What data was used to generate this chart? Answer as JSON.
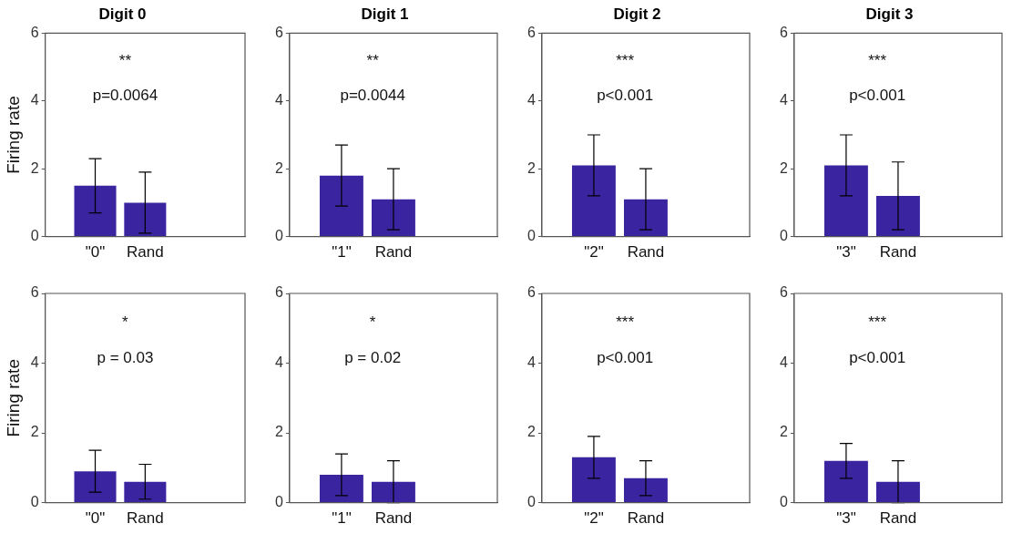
{
  "chart_data": [
    {
      "type": "bar",
      "title": "Digit 0",
      "ylabel": "Firing rate",
      "categories": [
        null,
        "\"0\"",
        "Rand",
        null,
        null
      ],
      "values": [
        null,
        1.5,
        1.0,
        null,
        null
      ],
      "errors": [
        null,
        0.8,
        0.9,
        null,
        null
      ],
      "color": "#3b24a0",
      "ylim": [
        0,
        6
      ],
      "yticks": [
        0,
        2,
        4,
        6
      ],
      "annotations": [
        "**",
        "p=0.0064"
      ]
    },
    {
      "type": "bar",
      "title": "Digit 1",
      "categories": [
        null,
        "\"1\"",
        "Rand",
        null,
        null
      ],
      "values": [
        null,
        1.8,
        1.1,
        null,
        null
      ],
      "errors": [
        null,
        0.9,
        0.9,
        null,
        null
      ],
      "color": "#3b24a0",
      "ylim": [
        0,
        6
      ],
      "yticks": [
        0,
        2,
        4,
        6
      ],
      "annotations": [
        "**",
        "p=0.0044"
      ]
    },
    {
      "type": "bar",
      "title": "Digit 2",
      "categories": [
        null,
        "\"2\"",
        "Rand",
        null,
        null
      ],
      "values": [
        null,
        2.1,
        1.1,
        null,
        null
      ],
      "errors": [
        null,
        0.9,
        0.9,
        null,
        null
      ],
      "color": "#3b24a0",
      "ylim": [
        0,
        6
      ],
      "yticks": [
        0,
        2,
        4,
        6
      ],
      "annotations": [
        "***",
        "p<0.001"
      ]
    },
    {
      "type": "bar",
      "title": "Digit 3",
      "categories": [
        null,
        "\"3\"",
        "Rand",
        null,
        null
      ],
      "values": [
        null,
        2.1,
        1.2,
        null,
        null
      ],
      "errors": [
        null,
        0.9,
        1.0,
        null,
        null
      ],
      "color": "#3b24a0",
      "ylim": [
        0,
        6
      ],
      "yticks": [
        0,
        2,
        4,
        6
      ],
      "annotations": [
        "***",
        "p<0.001"
      ]
    },
    {
      "type": "bar",
      "ylabel": "Firing rate",
      "categories": [
        null,
        "\"0\"",
        "Rand",
        null,
        null
      ],
      "values": [
        null,
        0.9,
        0.6,
        null,
        null
      ],
      "errors": [
        null,
        0.6,
        0.5,
        null,
        null
      ],
      "color": "#3b24a0",
      "ylim": [
        0,
        6
      ],
      "yticks": [
        0,
        2,
        4,
        6
      ],
      "annotations": [
        "*",
        "p = 0.03"
      ]
    },
    {
      "type": "bar",
      "categories": [
        null,
        "\"1\"",
        "Rand",
        null,
        null
      ],
      "values": [
        null,
        0.8,
        0.6,
        null,
        null
      ],
      "errors": [
        null,
        0.6,
        0.6,
        null,
        null
      ],
      "color": "#3b24a0",
      "ylim": [
        0,
        6
      ],
      "yticks": [
        0,
        2,
        4,
        6
      ],
      "annotations": [
        "*",
        "p = 0.02"
      ]
    },
    {
      "type": "bar",
      "categories": [
        null,
        "\"2\"",
        "Rand",
        null,
        null
      ],
      "values": [
        null,
        1.3,
        0.7,
        null,
        null
      ],
      "errors": [
        null,
        0.6,
        0.5,
        null,
        null
      ],
      "color": "#3b24a0",
      "ylim": [
        0,
        6
      ],
      "yticks": [
        0,
        2,
        4,
        6
      ],
      "annotations": [
        "***",
        "p<0.001"
      ]
    },
    {
      "type": "bar",
      "categories": [
        null,
        "\"3\"",
        "Rand",
        null,
        null
      ],
      "values": [
        null,
        1.2,
        0.6,
        null,
        null
      ],
      "errors": [
        null,
        0.5,
        0.6,
        null,
        null
      ],
      "color": "#3b24a0",
      "ylim": [
        0,
        6
      ],
      "yticks": [
        0,
        2,
        4,
        6
      ],
      "annotations": [
        "***",
        "p<0.001"
      ]
    }
  ]
}
